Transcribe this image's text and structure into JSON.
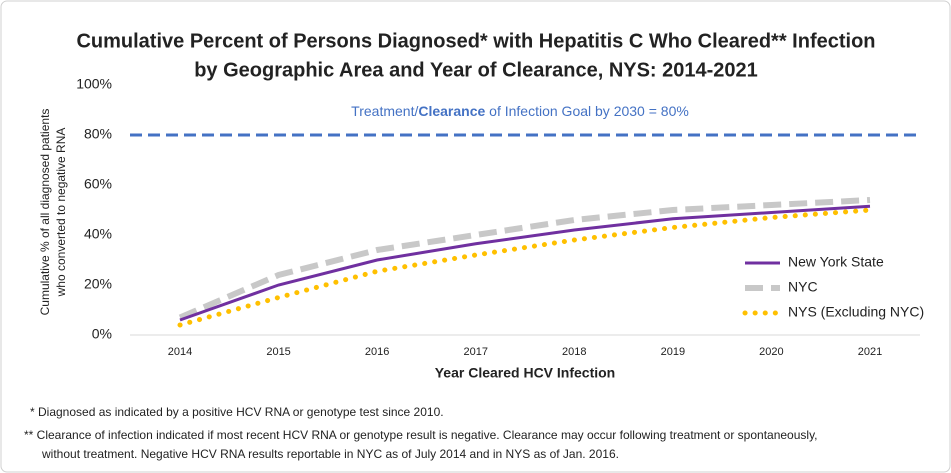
{
  "chart_data": {
    "type": "line",
    "title": [
      "Cumulative Percent of Persons Diagnosed* with Hepatitis C Who Cleared** Infection",
      "by Geographic Area and Year of Clearance, NYS: 2014-2021"
    ],
    "ylabel": [
      "Cumulative % of all diagnosed patients",
      "who converted to negative RNA"
    ],
    "xlabel": "Year Cleared HCV Infection",
    "categories": [
      "2014",
      "2015",
      "2016",
      "2017",
      "2018",
      "2019",
      "2020",
      "2021"
    ],
    "series": [
      {
        "name": "New York State",
        "color": "#7030a0",
        "style": "solid",
        "values": [
          6,
          20,
          30,
          36.5,
          42,
          46.5,
          49,
          51.5
        ]
      },
      {
        "name": "NYC",
        "color": "#c8c8c8",
        "style": "dashed",
        "values": [
          7,
          24,
          34,
          40,
          46,
          50,
          52,
          54
        ]
      },
      {
        "name": "NYS (Excluding NYC)",
        "color": "#ffc000",
        "style": "dotted",
        "values": [
          4,
          15,
          25.5,
          32,
          38,
          43,
          47,
          50
        ]
      }
    ],
    "ylim": [
      0,
      100
    ],
    "yticks": [
      {
        "value": 0,
        "label": "0%"
      },
      {
        "value": 20,
        "label": "20%"
      },
      {
        "value": 40,
        "label": "40%"
      },
      {
        "value": 60,
        "label": "60%"
      },
      {
        "value": 80,
        "label": "80%"
      },
      {
        "value": 100,
        "label": "100%"
      }
    ],
    "goal_line": {
      "value": 80,
      "color": "#4472c4",
      "annotation": [
        "Treatment/",
        "Clearance",
        " of Infection Goal by 2030  = 80%"
      ]
    },
    "legend": "right",
    "footnotes": [
      "* Diagnosed as indicated by a positive HCV RNA or genotype test since 2010.",
      "** Clearance of infection indicated if most recent HCV RNA or genotype result is negative.  Clearance may occur following treatment or spontaneously,",
      "without treatment.  Negative HCV RNA results reportable in NYC as of July 2014 and in NYS as of Jan. 2016."
    ]
  }
}
